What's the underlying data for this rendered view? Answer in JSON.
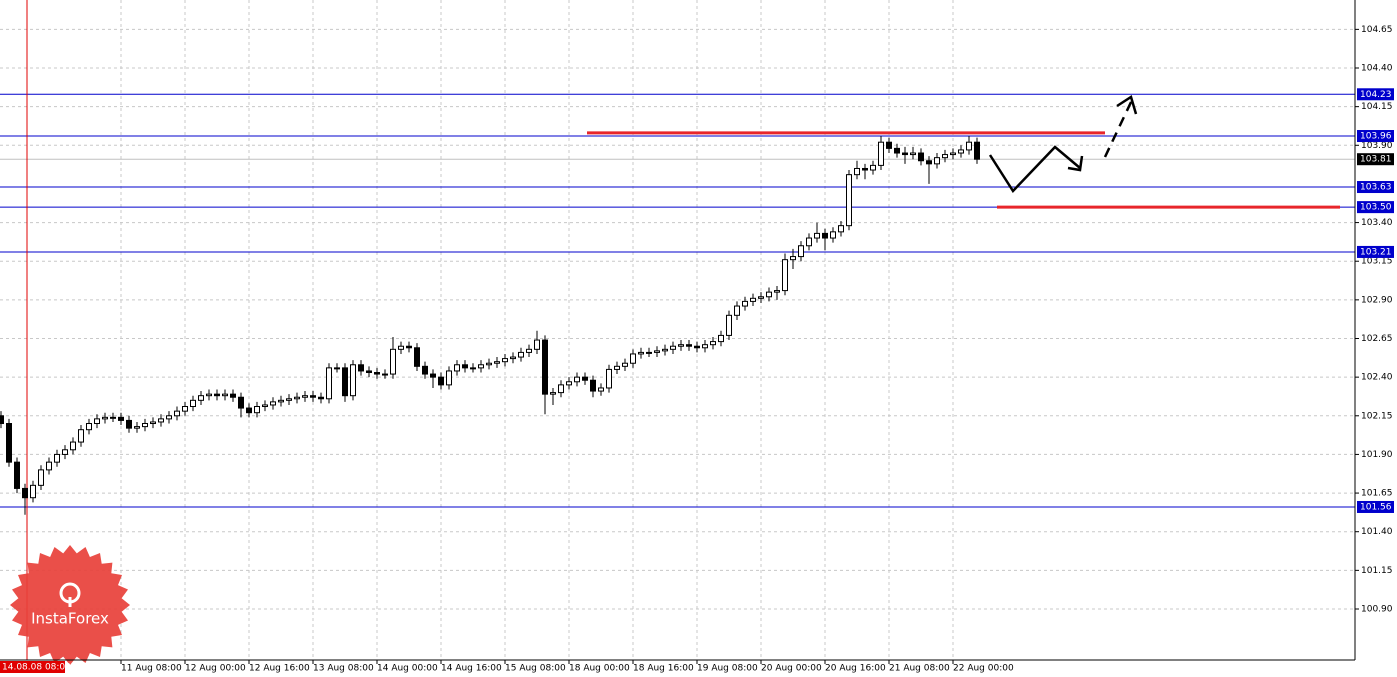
{
  "chart_data": {
    "type": "candlestick",
    "categories": [
      null,
      null,
      null,
      null,
      null,
      null,
      null,
      null,
      null,
      null,
      null,
      null,
      null,
      null,
      null,
      "11 Aug 08:00",
      null,
      null,
      null,
      null,
      null,
      null,
      null,
      "12 Aug 00:00",
      null,
      null,
      null,
      null,
      null,
      null,
      null,
      "12 Aug 16:00",
      null,
      null,
      null,
      null,
      null,
      null,
      null,
      "13 Aug 08:00",
      null,
      null,
      null,
      null,
      null,
      null,
      null,
      "14 Aug 00:00",
      null,
      null,
      null,
      null,
      null,
      null,
      null,
      "14 Aug 16:00",
      null,
      null,
      null,
      null,
      null,
      null,
      null,
      "15 Aug 08:00",
      null,
      null,
      null,
      null,
      null,
      null,
      null,
      "18 Aug 00:00",
      null,
      null,
      null,
      null,
      null,
      null,
      null,
      "18 Aug 16:00",
      null,
      null,
      null,
      null,
      null,
      null,
      null,
      "19 Aug 08:00",
      null,
      null,
      null,
      null,
      null,
      null,
      null,
      "20 Aug 00:00",
      null,
      null,
      null,
      null,
      null,
      null,
      null,
      "20 Aug 16:00",
      null,
      null,
      null,
      null,
      null,
      null,
      null,
      "21 Aug 08:00",
      null,
      null,
      null,
      null,
      null,
      null,
      null,
      "22 Aug 00:00",
      null,
      null,
      null
    ],
    "open": [
      102.15,
      102.1,
      101.85,
      101.68,
      101.62,
      101.7,
      101.8,
      101.85,
      101.9,
      101.93,
      101.98,
      102.06,
      102.1,
      102.13,
      102.14,
      102.14,
      102.12,
      102.07,
      102.08,
      102.1,
      102.11,
      102.13,
      102.15,
      102.18,
      102.21,
      102.25,
      102.28,
      102.29,
      102.28,
      102.29,
      102.27,
      102.2,
      102.17,
      102.21,
      102.22,
      102.24,
      102.25,
      102.26,
      102.27,
      102.28,
      102.27,
      102.26,
      102.46,
      102.46,
      102.28,
      102.48,
      102.44,
      102.43,
      102.42,
      102.42,
      102.58,
      102.6,
      102.59,
      102.47,
      102.42,
      102.4,
      102.35,
      102.44,
      102.48,
      102.46,
      102.46,
      102.48,
      102.49,
      102.5,
      102.52,
      102.53,
      102.56,
      102.58,
      102.64,
      102.29,
      102.3,
      102.35,
      102.37,
      102.4,
      102.38,
      102.31,
      102.33,
      102.45,
      102.47,
      102.49,
      102.55,
      102.56,
      102.56,
      102.57,
      102.58,
      102.6,
      102.61,
      102.6,
      102.59,
      102.61,
      102.63,
      102.67,
      102.8,
      102.86,
      102.89,
      102.91,
      102.92,
      102.95,
      102.96,
      103.16,
      103.18,
      103.25,
      103.3,
      103.33,
      103.3,
      103.34,
      103.38,
      103.71,
      103.75,
      103.74,
      103.77,
      103.92,
      103.88,
      103.85,
      103.84,
      103.85,
      103.8,
      103.78,
      103.82,
      103.84,
      103.85,
      103.87,
      103.92
    ],
    "high": [
      102.18,
      102.13,
      101.88,
      101.71,
      101.73,
      101.83,
      101.88,
      101.93,
      101.96,
      102.01,
      102.09,
      102.13,
      102.16,
      102.17,
      102.17,
      102.17,
      102.15,
      102.11,
      102.13,
      102.14,
      102.16,
      102.18,
      102.21,
      102.24,
      102.28,
      102.31,
      102.32,
      102.32,
      102.32,
      102.32,
      102.3,
      102.23,
      102.24,
      102.25,
      102.27,
      102.28,
      102.29,
      102.3,
      102.31,
      102.31,
      102.3,
      102.49,
      102.49,
      102.49,
      102.51,
      102.51,
      102.47,
      102.46,
      102.45,
      102.66,
      102.63,
      102.63,
      102.62,
      102.5,
      102.45,
      102.43,
      102.47,
      102.51,
      102.51,
      102.49,
      102.51,
      102.52,
      102.53,
      102.55,
      102.56,
      102.59,
      102.61,
      102.7,
      102.67,
      102.33,
      102.38,
      102.4,
      102.43,
      102.43,
      102.41,
      102.36,
      102.48,
      102.5,
      102.52,
      102.58,
      102.59,
      102.59,
      102.6,
      102.61,
      102.63,
      102.64,
      102.64,
      102.63,
      102.64,
      102.66,
      102.7,
      102.83,
      102.89,
      102.92,
      102.94,
      102.95,
      102.98,
      102.99,
      103.2,
      103.23,
      103.28,
      103.33,
      103.4,
      103.36,
      103.37,
      103.41,
      103.74,
      103.8,
      103.78,
      103.8,
      103.96,
      103.95,
      103.91,
      103.89,
      103.89,
      103.88,
      103.83,
      103.85,
      103.87,
      103.88,
      103.9,
      103.96,
      103.95
    ],
    "low": [
      102.07,
      101.82,
      101.65,
      101.51,
      101.59,
      101.67,
      101.77,
      101.82,
      101.87,
      101.9,
      101.95,
      102.03,
      102.07,
      102.1,
      102.11,
      102.09,
      102.04,
      102.04,
      102.05,
      102.07,
      102.08,
      102.1,
      102.12,
      102.15,
      102.18,
      102.22,
      102.25,
      102.25,
      102.25,
      102.24,
      102.14,
      102.14,
      102.14,
      102.18,
      102.19,
      102.21,
      102.22,
      102.23,
      102.24,
      102.24,
      102.23,
      102.23,
      102.43,
      102.24,
      102.25,
      102.41,
      102.4,
      102.39,
      102.39,
      102.39,
      102.55,
      102.56,
      102.44,
      102.39,
      102.33,
      102.32,
      102.32,
      102.41,
      102.43,
      102.43,
      102.43,
      102.45,
      102.46,
      102.47,
      102.49,
      102.5,
      102.53,
      102.55,
      102.16,
      102.22,
      102.27,
      102.32,
      102.34,
      102.35,
      102.27,
      102.28,
      102.3,
      102.42,
      102.44,
      102.46,
      102.52,
      102.53,
      102.53,
      102.54,
      102.55,
      102.57,
      102.57,
      102.56,
      102.56,
      102.58,
      102.6,
      102.64,
      102.77,
      102.83,
      102.86,
      102.88,
      102.89,
      102.9,
      102.93,
      103.1,
      103.15,
      103.22,
      103.27,
      103.22,
      103.27,
      103.31,
      103.35,
      103.68,
      103.68,
      103.71,
      103.74,
      103.85,
      103.82,
      103.78,
      103.81,
      103.77,
      103.65,
      103.75,
      103.79,
      103.81,
      103.82,
      103.84,
      103.78
    ],
    "close": [
      102.1,
      101.85,
      101.68,
      101.62,
      101.7,
      101.8,
      101.85,
      101.9,
      101.93,
      101.98,
      102.06,
      102.1,
      102.13,
      102.14,
      102.14,
      102.12,
      102.07,
      102.08,
      102.1,
      102.11,
      102.13,
      102.15,
      102.18,
      102.21,
      102.25,
      102.28,
      102.29,
      102.28,
      102.29,
      102.27,
      102.2,
      102.17,
      102.21,
      102.22,
      102.24,
      102.25,
      102.26,
      102.27,
      102.28,
      102.27,
      102.26,
      102.46,
      102.46,
      102.28,
      102.48,
      102.44,
      102.43,
      102.42,
      102.42,
      102.58,
      102.6,
      102.59,
      102.47,
      102.42,
      102.4,
      102.35,
      102.44,
      102.48,
      102.46,
      102.46,
      102.48,
      102.49,
      102.5,
      102.52,
      102.53,
      102.56,
      102.58,
      102.64,
      102.29,
      102.3,
      102.35,
      102.37,
      102.4,
      102.38,
      102.31,
      102.33,
      102.45,
      102.47,
      102.49,
      102.55,
      102.56,
      102.56,
      102.57,
      102.58,
      102.6,
      102.61,
      102.6,
      102.59,
      102.61,
      102.63,
      102.67,
      102.8,
      102.86,
      102.89,
      102.91,
      102.92,
      102.95,
      102.96,
      103.16,
      103.18,
      103.25,
      103.3,
      103.33,
      103.3,
      103.34,
      103.38,
      103.71,
      103.75,
      103.74,
      103.77,
      103.92,
      103.88,
      103.85,
      103.84,
      103.85,
      103.8,
      103.78,
      103.82,
      103.84,
      103.85,
      103.87,
      103.92,
      103.81
    ],
    "color": "#000000",
    "ylim": [
      100.57,
      104.84
    ],
    "yticks": [
      {
        "value": 100.9,
        "label": "100.90"
      },
      101.15,
      {
        "value": 101.4,
        "label": "101.40"
      },
      101.65,
      {
        "value": 101.9,
        "label": "101.90"
      },
      102.15,
      {
        "value": 102.4,
        "label": "102.40"
      },
      102.65,
      {
        "value": 102.9,
        "label": "102.90"
      },
      103.15,
      {
        "value": 103.4,
        "label": "103.40"
      },
      {
        "value": 103.9,
        "label": "103.90"
      },
      104.15,
      {
        "value": 104.4,
        "label": "104.40"
      },
      104.65
    ],
    "grid": true,
    "levels": [
      104.23,
      103.96,
      103.63,
      {
        "value": 103.5,
        "label": "103.50"
      },
      103.21,
      101.56
    ],
    "level_color": "#0000cc",
    "trend_levels": [
      103.98,
      103.5
    ],
    "trend_color": "#e8262b",
    "marker_label": "14.08.08 08:00"
  },
  "logo": "InstaForex"
}
